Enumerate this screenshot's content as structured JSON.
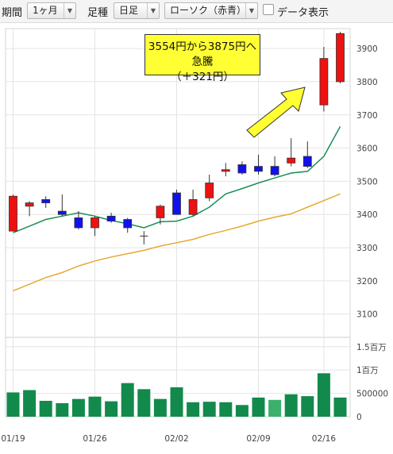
{
  "toolbar": {
    "period_label": "期間",
    "period_value": "1ヶ月",
    "type_label": "足種",
    "type_value": "日足",
    "style_value": "ローソク（赤青）",
    "data_toggle_label": "データ表示",
    "dropdown_arrow": "▼"
  },
  "annotation": {
    "line1": "3554円から3875円へ急騰",
    "line2": "（＋321円）"
  },
  "colors": {
    "up": "#ee1111",
    "down": "#1111ee",
    "ma_short": "#1a8f55",
    "ma_long": "#e8a830",
    "volume": "#128a4c",
    "volume_highlight": "#3bb06c",
    "arrow": "#ffff33"
  },
  "chart_data": {
    "type": "candlestick",
    "x_tick_labels": [
      "01/19",
      "01/26",
      "02/02",
      "02/09",
      "02/16"
    ],
    "x_tick_index": [
      0,
      5,
      10,
      15,
      19
    ],
    "y_price_ticks": [
      3100,
      3200,
      3300,
      3400,
      3500,
      3600,
      3700,
      3800,
      3900
    ],
    "ylim_price": [
      3030,
      3960
    ],
    "y_volume_ticks": [
      {
        "value": 0,
        "label": "0"
      },
      {
        "value": 500000,
        "label": "500000"
      },
      {
        "value": 1000000,
        "label": "1百万"
      },
      {
        "value": 1500000,
        "label": "1.5百万"
      }
    ],
    "ylim_volume": [
      0,
      1700000
    ],
    "grid": true,
    "candles": [
      {
        "open": 3350,
        "high": 3460,
        "low": 3355,
        "close": 3455
      },
      {
        "open": 3425,
        "high": 3440,
        "low": 3395,
        "close": 3435
      },
      {
        "open": 3445,
        "high": 3455,
        "low": 3420,
        "close": 3435
      },
      {
        "open": 3410,
        "high": 3460,
        "low": 3395,
        "close": 3400
      },
      {
        "open": 3390,
        "high": 3410,
        "low": 3355,
        "close": 3360
      },
      {
        "open": 3360,
        "high": 3395,
        "low": 3335,
        "close": 3390
      },
      {
        "open": 3395,
        "high": 3405,
        "low": 3375,
        "close": 3380
      },
      {
        "open": 3385,
        "high": 3390,
        "low": 3345,
        "close": 3360
      },
      {
        "open": 3335,
        "high": 3350,
        "low": 3310,
        "close": 3335
      },
      {
        "open": 3390,
        "high": 3430,
        "low": 3370,
        "close": 3425
      },
      {
        "open": 3465,
        "high": 3475,
        "low": 3400,
        "close": 3400
      },
      {
        "open": 3400,
        "high": 3475,
        "low": 3395,
        "close": 3445
      },
      {
        "open": 3450,
        "high": 3520,
        "low": 3440,
        "close": 3495
      },
      {
        "open": 3530,
        "high": 3555,
        "low": 3515,
        "close": 3535
      },
      {
        "open": 3550,
        "high": 3560,
        "low": 3520,
        "close": 3525
      },
      {
        "open": 3545,
        "high": 3580,
        "low": 3520,
        "close": 3530
      },
      {
        "open": 3545,
        "high": 3575,
        "low": 3515,
        "close": 3520
      },
      {
        "open": 3555,
        "high": 3630,
        "low": 3545,
        "close": 3570
      },
      {
        "open": 3575,
        "high": 3620,
        "low": 3540,
        "close": 3545
      },
      {
        "open": 3730,
        "high": 3905,
        "low": 3710,
        "close": 3870
      },
      {
        "open": 3800,
        "high": 3950,
        "low": 3795,
        "close": 3945
      }
    ],
    "volume": [
      520000,
      570000,
      340000,
      290000,
      380000,
      430000,
      330000,
      720000,
      590000,
      380000,
      630000,
      310000,
      320000,
      310000,
      250000,
      410000,
      360000,
      480000,
      440000,
      930000,
      410000
    ],
    "volume_highlight_index": 16,
    "series": [
      {
        "values": [
          3345,
          3365,
          3385,
          3395,
          3405,
          3395,
          3382,
          3372,
          3360,
          3378,
          3380,
          3395,
          3422,
          3462,
          3478,
          3495,
          3510,
          3525,
          3530,
          3575,
          3665
        ]
      },
      {
        "values": [
          3170,
          3190,
          3210,
          3225,
          3245,
          3260,
          3272,
          3282,
          3292,
          3305,
          3315,
          3325,
          3340,
          3352,
          3365,
          3380,
          3392,
          3402,
          3422,
          3442,
          3462
        ]
      }
    ]
  }
}
